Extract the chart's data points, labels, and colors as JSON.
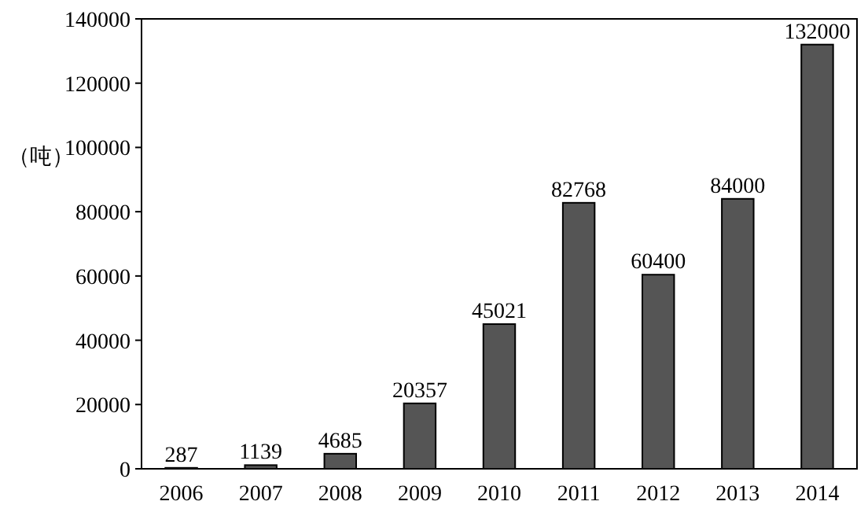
{
  "chart_data": {
    "type": "bar",
    "ylabel": "（吨）",
    "categories": [
      "2006",
      "2007",
      "2008",
      "2009",
      "2010",
      "2011",
      "2012",
      "2013",
      "2014"
    ],
    "values": [
      287,
      1139,
      4685,
      20357,
      45021,
      82768,
      60400,
      84000,
      132000
    ],
    "color": "#555555",
    "data_labels": true,
    "grid": false,
    "ylim": [
      0,
      140000
    ],
    "yticks": [
      0,
      20000,
      40000,
      60000,
      80000,
      100000,
      120000,
      140000
    ]
  }
}
